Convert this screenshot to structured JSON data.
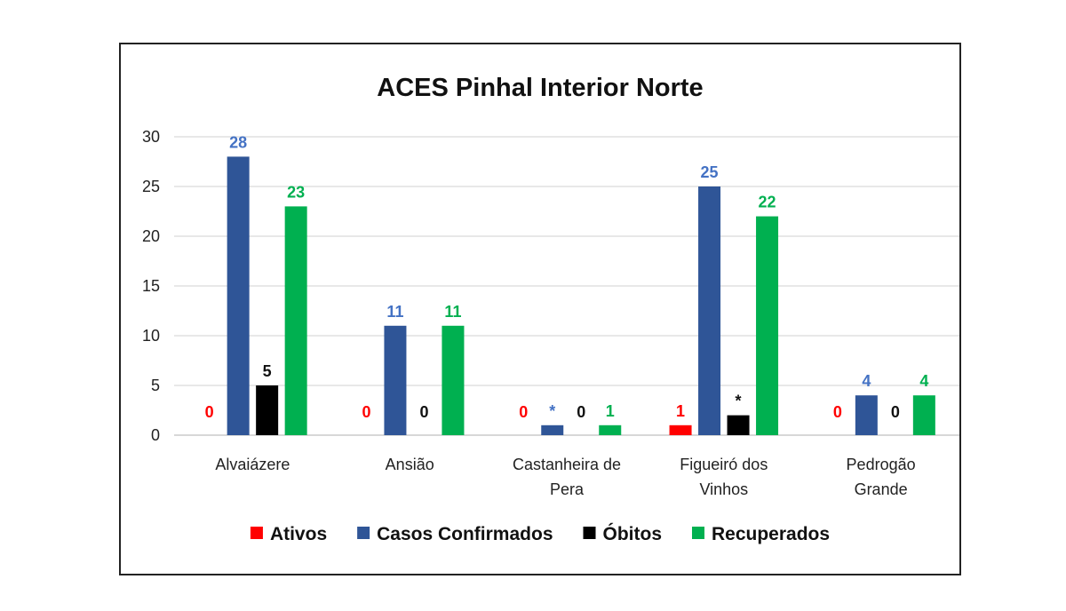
{
  "chart_data": {
    "type": "bar",
    "title": "ACES Pinhal Interior Norte",
    "xlabel": "",
    "ylabel": "",
    "ylim": [
      0,
      30
    ],
    "yticks": [
      0,
      5,
      10,
      15,
      20,
      25,
      30
    ],
    "grid": true,
    "legend_position": "bottom",
    "categories": [
      [
        "Alvaiázere"
      ],
      [
        "Ansião"
      ],
      [
        "Castanheira de",
        "Pera"
      ],
      [
        "Figueiró dos",
        "Vinhos"
      ],
      [
        "Pedrogão",
        "Grande"
      ]
    ],
    "series": [
      {
        "name": "Ativos",
        "color": "#ff0000",
        "values": [
          0,
          0,
          0,
          1,
          0
        ],
        "labels": [
          "0",
          "0",
          "0",
          "1",
          "0"
        ]
      },
      {
        "name": "Casos Confirmados",
        "color": "#2f5597",
        "values": [
          28,
          11,
          1,
          25,
          4
        ],
        "labels": [
          "28",
          "11",
          "*",
          "25",
          "4"
        ]
      },
      {
        "name": "Óbitos",
        "color": "#000000",
        "values": [
          5,
          0,
          0,
          2,
          0
        ],
        "labels": [
          "5",
          "0",
          "0",
          "*",
          "0"
        ]
      },
      {
        "name": "Recuperados",
        "color": "#00b050",
        "values": [
          23,
          11,
          1,
          22,
          4
        ],
        "labels": [
          "23",
          "11",
          "1",
          "22",
          "4"
        ]
      }
    ],
    "label_colors": [
      "#ff0000",
      "#4472c4",
      "#111111",
      "#00b050"
    ]
  }
}
